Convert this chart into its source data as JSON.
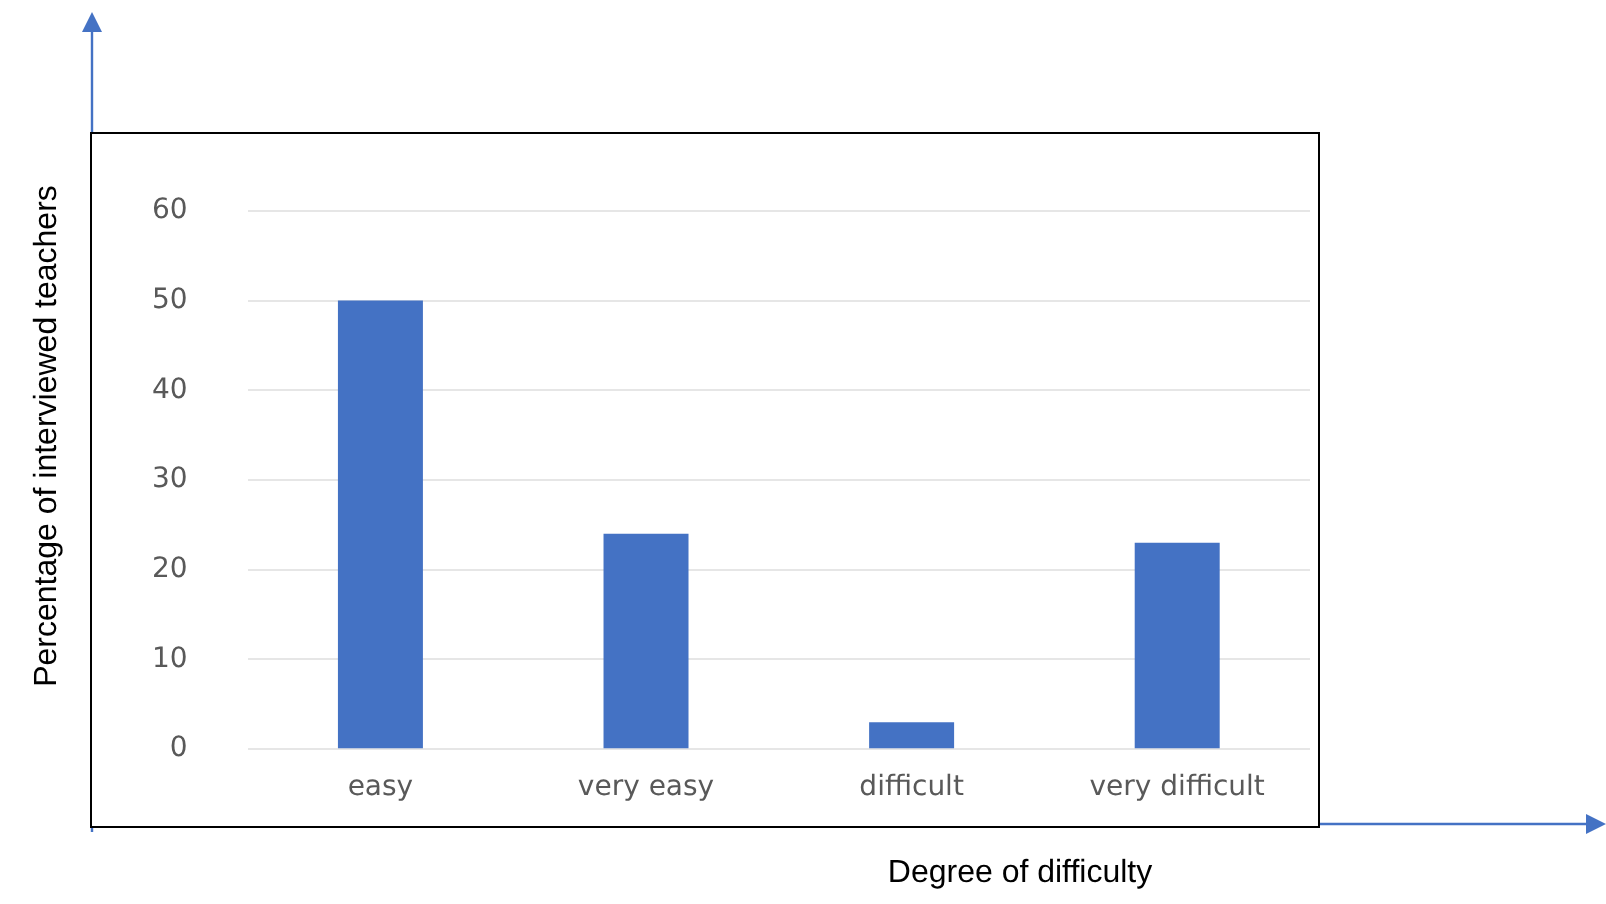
{
  "chart_data": {
    "type": "bar",
    "xlabel": "Degree of difficulty",
    "ylabel": "Percentage of interviewed teachers",
    "categories": [
      "easy",
      "very easy",
      "difficult",
      "very difficult"
    ],
    "values": [
      50,
      24,
      3,
      23
    ],
    "color": "#4472c4",
    "ylim": [
      0,
      60
    ],
    "yticks": [
      0,
      10,
      20,
      30,
      40,
      50,
      60
    ],
    "grid": "y",
    "legend": false
  }
}
